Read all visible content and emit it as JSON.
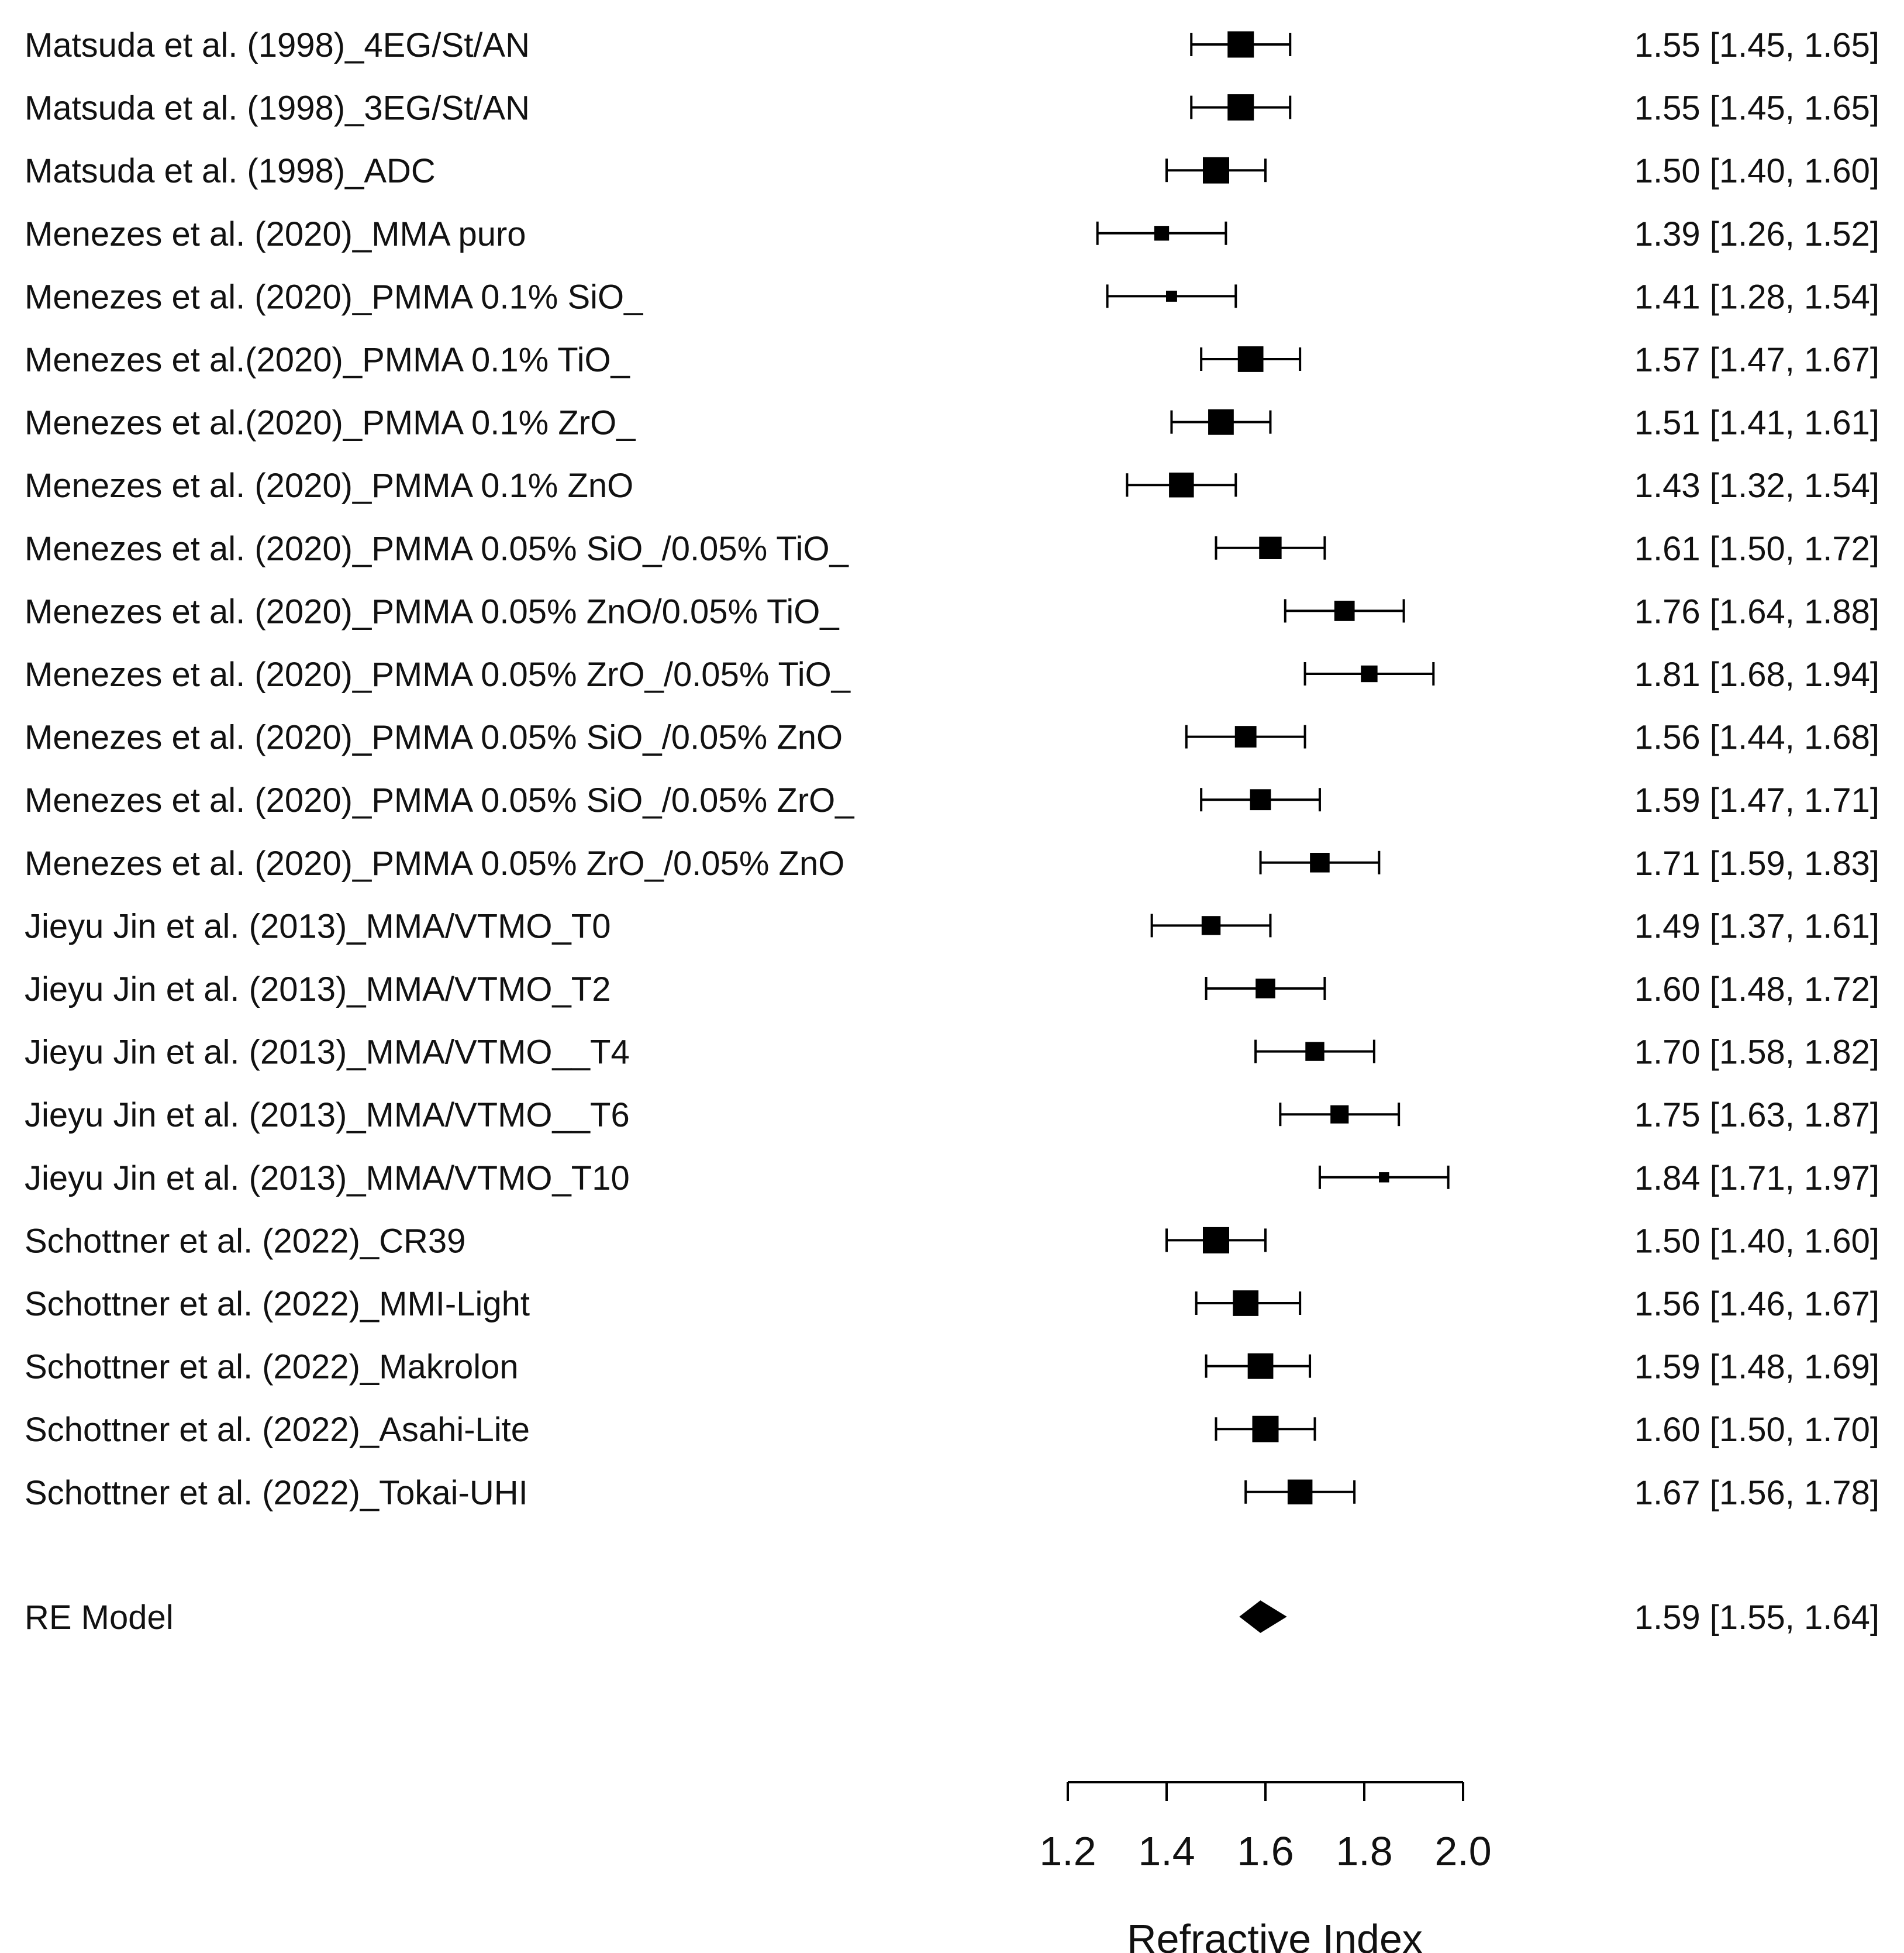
{
  "chart_data": {
    "type": "forest",
    "title": "",
    "xlabel": "Refractive Index",
    "ylabel": "",
    "xlim": [
      1.2,
      2.0
    ],
    "ticks": [
      1.2,
      1.4,
      1.6,
      1.8,
      2.0
    ],
    "tick_labels": [
      "1.2",
      "1.4",
      "1.6",
      "1.8",
      "2.0"
    ],
    "studies": [
      {
        "label": "Matsuda et al. (1998)_4EG/St/AN",
        "estimate": 1.55,
        "lower": 1.45,
        "upper": 1.65,
        "weight": 4.6,
        "ci_text": "1.55 [1.45, 1.65]"
      },
      {
        "label": "Matsuda et al. (1998)_3EG/St/AN",
        "estimate": 1.55,
        "lower": 1.45,
        "upper": 1.65,
        "weight": 4.6,
        "ci_text": "1.55 [1.45, 1.65]"
      },
      {
        "label": "Matsuda et al. (1998)_ADC",
        "estimate": 1.5,
        "lower": 1.4,
        "upper": 1.6,
        "weight": 4.6,
        "ci_text": "1.50 [1.40, 1.60]"
      },
      {
        "label": "Menezes et al. (2020)_MMA puro",
        "estimate": 1.39,
        "lower": 1.26,
        "upper": 1.52,
        "weight": 1.0,
        "ci_text": "1.39 [1.26, 1.52]"
      },
      {
        "label": "Menezes et al. (2020)_PMMA 0.1% SiO_",
        "estimate": 1.41,
        "lower": 1.28,
        "upper": 1.54,
        "weight": 0.4,
        "ci_text": "1.41 [1.28, 1.54]"
      },
      {
        "label": "Menezes et al.(2020)_PMMA 0.1% TiO_",
        "estimate": 1.57,
        "lower": 1.47,
        "upper": 1.67,
        "weight": 4.3,
        "ci_text": "1.57 [1.47, 1.67]"
      },
      {
        "label": "Menezes et al.(2020)_PMMA 0.1% ZrO_",
        "estimate": 1.51,
        "lower": 1.41,
        "upper": 1.61,
        "weight": 4.3,
        "ci_text": "1.51 [1.41, 1.61]"
      },
      {
        "label": "Menezes et al. (2020)_PMMA 0.1% ZnO",
        "estimate": 1.43,
        "lower": 1.32,
        "upper": 1.54,
        "weight": 4.0,
        "ci_text": "1.43 [1.32, 1.54]"
      },
      {
        "label": "Menezes et al. (2020)_PMMA 0.05% SiO_/0.05% TiO_",
        "estimate": 1.61,
        "lower": 1.5,
        "upper": 1.72,
        "weight": 3.1,
        "ci_text": "1.61 [1.50, 1.72]"
      },
      {
        "label": "Menezes et al. (2020)_PMMA 0.05% ZnO/0.05% TiO_",
        "estimate": 1.76,
        "lower": 1.64,
        "upper": 1.88,
        "weight": 2.4,
        "ci_text": "1.76 [1.64, 1.88]"
      },
      {
        "label": "Menezes et al. (2020)_PMMA 0.05% ZrO_/0.05% TiO_",
        "estimate": 1.81,
        "lower": 1.68,
        "upper": 1.94,
        "weight": 1.4,
        "ci_text": "1.81 [1.68, 1.94]"
      },
      {
        "label": "Menezes et al. (2020)_PMMA 0.05% SiO_/0.05% ZnO",
        "estimate": 1.56,
        "lower": 1.44,
        "upper": 1.68,
        "weight": 2.8,
        "ci_text": "1.56 [1.44, 1.68]"
      },
      {
        "label": "Menezes et al. (2020)_PMMA 0.05% SiO_/0.05% ZrO_",
        "estimate": 1.59,
        "lower": 1.47,
        "upper": 1.71,
        "weight": 2.6,
        "ci_text": "1.59 [1.47, 1.71]"
      },
      {
        "label": "Menezes et al. (2020)_PMMA 0.05% ZrO_/0.05% ZnO",
        "estimate": 1.71,
        "lower": 1.59,
        "upper": 1.83,
        "weight": 2.2,
        "ci_text": "1.71 [1.59, 1.83]"
      },
      {
        "label": "Jieyu Jin et al. (2013)_MMA/VTMO_T0",
        "estimate": 1.49,
        "lower": 1.37,
        "upper": 1.61,
        "weight": 2.0,
        "ci_text": "1.49 [1.37, 1.61]"
      },
      {
        "label": "Jieyu Jin et al. (2013)_MMA/VTMO_T2",
        "estimate": 1.6,
        "lower": 1.48,
        "upper": 1.72,
        "weight": 2.2,
        "ci_text": "1.60 [1.48, 1.72]"
      },
      {
        "label": "Jieyu Jin et al. (2013)_MMA/VTMO__T4",
        "estimate": 1.7,
        "lower": 1.58,
        "upper": 1.82,
        "weight": 2.0,
        "ci_text": "1.70 [1.58, 1.82]"
      },
      {
        "label": "Jieyu Jin et al. (2013)_MMA/VTMO__T6",
        "estimate": 1.75,
        "lower": 1.63,
        "upper": 1.87,
        "weight": 1.8,
        "ci_text": "1.75 [1.63, 1.87]"
      },
      {
        "label": "Jieyu Jin et al. (2013)_MMA/VTMO_T10",
        "estimate": 1.84,
        "lower": 1.71,
        "upper": 1.97,
        "weight": 0.3,
        "ci_text": "1.84 [1.71, 1.97]"
      },
      {
        "label": "Schottner et al. (2022)_CR39",
        "estimate": 1.5,
        "lower": 1.4,
        "upper": 1.6,
        "weight": 4.6,
        "ci_text": "1.50 [1.40, 1.60]"
      },
      {
        "label": "Schottner et al. (2022)_MMI-Light",
        "estimate": 1.56,
        "lower": 1.46,
        "upper": 1.67,
        "weight": 4.3,
        "ci_text": "1.56 [1.46, 1.67]"
      },
      {
        "label": "Schottner et al. (2022)_Makrolon",
        "estimate": 1.59,
        "lower": 1.48,
        "upper": 1.69,
        "weight": 4.3,
        "ci_text": "1.59 [1.48, 1.69]"
      },
      {
        "label": "Schottner et al. (2022)_Asahi-Lite",
        "estimate": 1.6,
        "lower": 1.5,
        "upper": 1.7,
        "weight": 4.6,
        "ci_text": "1.60 [1.50, 1.70]"
      },
      {
        "label": "Schottner et al. (2022)_Tokai-UHI",
        "estimate": 1.67,
        "lower": 1.56,
        "upper": 1.78,
        "weight": 4.0,
        "ci_text": "1.67 [1.56, 1.78]"
      }
    ],
    "summary": {
      "label": "RE Model",
      "estimate": 1.59,
      "lower": 1.55,
      "upper": 1.64,
      "ci_text": "1.59 [1.55, 1.64]"
    }
  }
}
